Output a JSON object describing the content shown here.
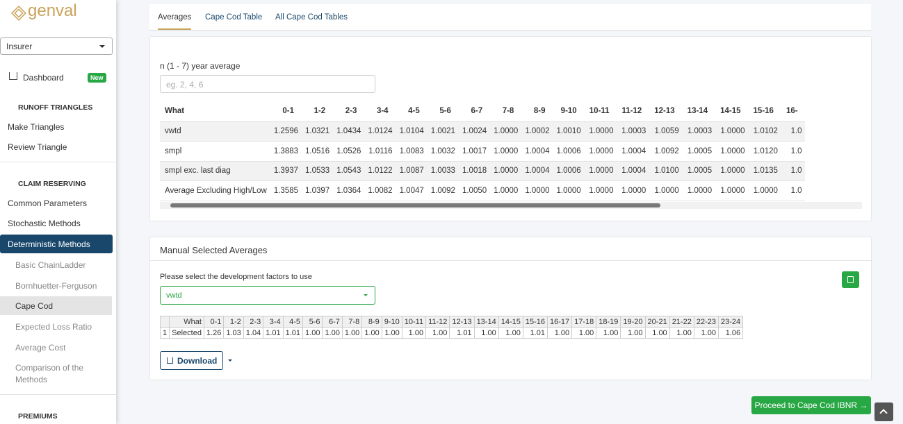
{
  "sidebar": {
    "logo": "genval",
    "insurer": "Insurer",
    "dashboard": "Dashboard",
    "badge": "New",
    "runoff": "RUNOFF TRIANGLES",
    "make": "Make Triangles",
    "review": "Review Triangle",
    "claim": "CLAIM RESERVING",
    "common": "Common Parameters",
    "stochastic": "Stochastic Methods",
    "deterministic": "Deterministic Methods",
    "subitems": [
      "Basic ChainLadder",
      "Bornhuetter-Ferguson",
      "Cape Cod",
      "Expected Loss Ratio",
      "Average Cost",
      "Comparison of the Methods"
    ],
    "premiums": "PREMIUMS"
  },
  "tabs": [
    "Averages",
    "Cape Cod Table",
    "All Cape Cod Tables"
  ],
  "averages": {
    "label": "n (1 - 7) year average",
    "placeholder": "eg. 2, 4, 6",
    "columns": [
      "What",
      "0-1",
      "1-2",
      "2-3",
      "3-4",
      "4-5",
      "5-6",
      "6-7",
      "7-8",
      "8-9",
      "9-10",
      "10-11",
      "11-12",
      "12-13",
      "13-14",
      "14-15",
      "15-16",
      "16-"
    ],
    "rows": [
      [
        "vwtd",
        "1.2596",
        "1.0321",
        "1.0434",
        "1.0124",
        "1.0104",
        "1.0021",
        "1.0024",
        "1.0000",
        "1.0002",
        "1.0010",
        "1.0000",
        "1.0003",
        "1.0059",
        "1.0003",
        "1.0000",
        "1.0102",
        "1.0"
      ],
      [
        "smpl",
        "1.3883",
        "1.0516",
        "1.0526",
        "1.0116",
        "1.0083",
        "1.0032",
        "1.0017",
        "1.0000",
        "1.0004",
        "1.0006",
        "1.0000",
        "1.0004",
        "1.0092",
        "1.0005",
        "1.0000",
        "1.0120",
        "1.0"
      ],
      [
        "smpl exc. last diag",
        "1.3937",
        "1.0533",
        "1.0543",
        "1.0122",
        "1.0087",
        "1.0033",
        "1.0018",
        "1.0000",
        "1.0004",
        "1.0006",
        "1.0000",
        "1.0004",
        "1.0100",
        "1.0005",
        "1.0000",
        "1.0135",
        "1.0"
      ],
      [
        "Average Excluding High/Low",
        "1.3585",
        "1.0397",
        "1.0364",
        "1.0082",
        "1.0047",
        "1.0092",
        "1.0050",
        "1.0000",
        "1.0000",
        "1.0000",
        "1.0000",
        "1.0000",
        "1.0000",
        "1.0000",
        "1.0000",
        "1.0000",
        "1.0"
      ]
    ]
  },
  "manual": {
    "title": "Manual Selected Averages",
    "prompt": "Please select the development factors to use",
    "selected": "vwtd",
    "columns": [
      "What",
      "0-1",
      "1-2",
      "2-3",
      "3-4",
      "4-5",
      "5-6",
      "6-7",
      "7-8",
      "8-9",
      "9-10",
      "10-11",
      "11-12",
      "12-13",
      "13-14",
      "14-15",
      "15-16",
      "16-17",
      "17-18",
      "18-19",
      "19-20",
      "20-21",
      "21-22",
      "22-23",
      "23-24"
    ],
    "rows": [
      [
        "1",
        "Selected",
        "1.26",
        "1.03",
        "1.04",
        "1.01",
        "1.01",
        "1.00",
        "1.00",
        "1.00",
        "1.00",
        "1.00",
        "1.00",
        "1.00",
        "1.01",
        "1.00",
        "1.00",
        "1.01",
        "1.00",
        "1.00",
        "1.00",
        "1.00",
        "1.00",
        "1.00",
        "1.00",
        "1.06"
      ]
    ]
  },
  "download": "Download",
  "proceed": "Proceed to Cape Cod IBNR →"
}
